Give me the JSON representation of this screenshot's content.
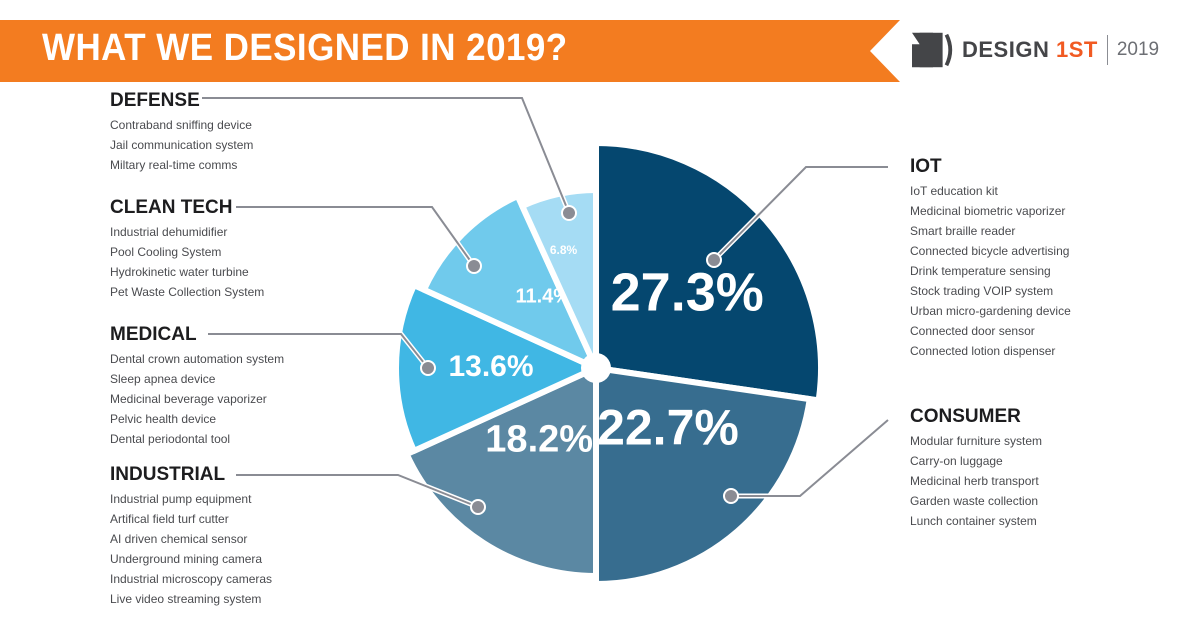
{
  "header": {
    "title": "WHAT WE DESIGNED IN 2019?",
    "banner_color": "#f37c20"
  },
  "logo": {
    "icon": "design-1st-logo-icon",
    "brand_main": "DESIGN",
    "brand_accent": "1ST",
    "year": "2019",
    "accent_color": "#f15a22"
  },
  "categories": {
    "defense": {
      "title": "DEFENSE",
      "items": [
        "Contraband sniffing device",
        "Jail communication system",
        "Miltary real-time comms"
      ]
    },
    "clean_tech": {
      "title": "CLEAN TECH",
      "items": [
        "Industrial dehumidifier",
        "Pool Cooling System",
        "Hydrokinetic water turbine",
        "Pet Waste Collection System"
      ]
    },
    "medical": {
      "title": "MEDICAL",
      "items": [
        "Dental crown automation system",
        "Sleep apnea device",
        "Medicinal beverage vaporizer",
        "Pelvic health device",
        "Dental periodontal tool"
      ]
    },
    "industrial": {
      "title": "INDUSTRIAL",
      "items": [
        "Industrial pump equipment",
        "Artifical field turf cutter",
        "AI driven chemical sensor",
        "Underground mining camera",
        "Industrial microscopy cameras",
        "Live video streaming system"
      ]
    },
    "iot": {
      "title": "IOT",
      "items": [
        "IoT education kit",
        "Medicinal biometric vaporizer",
        "Smart braille reader",
        "Connected bicycle advertising",
        "Drink temperature sensing",
        "Stock trading VOIP system",
        "Urban micro-gardening device",
        "Connected door sensor",
        "Connected lotion dispenser"
      ]
    },
    "consumer": {
      "title": "CONSUMER",
      "items": [
        "Modular furniture system",
        "Carry-on luggage",
        "Medicinal herb transport",
        "Garden waste collection",
        "Lunch container system"
      ]
    }
  },
  "chart_data": {
    "type": "pie",
    "title": "WHAT WE DESIGNED IN 2019?",
    "start_angle": "top (12 o'clock), clockwise",
    "slices": [
      {
        "key": "iot",
        "label": "IOT",
        "value": 27.3,
        "display": "27.3%",
        "color": "#05476f"
      },
      {
        "key": "consumer",
        "label": "CONSUMER",
        "value": 22.7,
        "display": "22.7%",
        "color": "#376d8f"
      },
      {
        "key": "industrial",
        "label": "INDUSTRIAL",
        "value": 18.2,
        "display": "18.2%",
        "color": "#5b88a3"
      },
      {
        "key": "medical",
        "label": "MEDICAL",
        "value": 13.6,
        "display": "13.6%",
        "color": "#40b7e4"
      },
      {
        "key": "clean_tech",
        "label": "CLEAN TECH",
        "value": 11.4,
        "display": "11.4%",
        "color": "#70caec"
      },
      {
        "key": "defense",
        "label": "DEFENSE",
        "value": 6.8,
        "display": "6.8%",
        "color": "#a5dcf4"
      }
    ],
    "leader_color": "#8a8c94"
  }
}
